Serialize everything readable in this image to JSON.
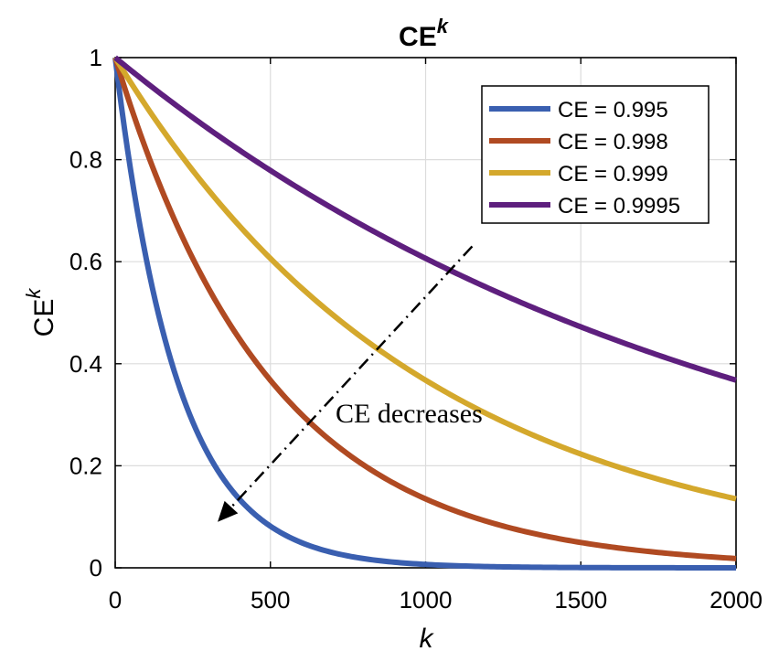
{
  "chart_data": {
    "type": "line",
    "title": "CE",
    "title_superscript": "k",
    "xlabel": "k",
    "ylabel": "CE",
    "ylabel_superscript": "k",
    "xlim": [
      0,
      2000
    ],
    "ylim": [
      0,
      1
    ],
    "xticks": [
      0,
      500,
      1000,
      1500,
      2000
    ],
    "xtick_labels": [
      "0",
      "500",
      "1000",
      "1500",
      "2000"
    ],
    "yticks": [
      0,
      0.2,
      0.4,
      0.6,
      0.8,
      1
    ],
    "ytick_labels": [
      "0",
      "0.2",
      "0.4",
      "0.6",
      "0.8",
      "1"
    ],
    "grid": true,
    "legend_position": "top-right",
    "function": "y = CE^k",
    "series": [
      {
        "name": "CE = 0.995",
        "ce": 0.995,
        "color": "#3a5fb0",
        "x": [
          0,
          250,
          500,
          750,
          1000,
          1500,
          2000
        ],
        "values": [
          1,
          0.286,
          0.082,
          0.023,
          0.007,
          0.001,
          0.0
        ]
      },
      {
        "name": "CE = 0.998",
        "ce": 0.998,
        "color": "#b04a22",
        "x": [
          0,
          250,
          500,
          750,
          1000,
          1500,
          2000
        ],
        "values": [
          1,
          0.606,
          0.367,
          0.223,
          0.135,
          0.05,
          0.018
        ]
      },
      {
        "name": "CE = 0.999",
        "ce": 0.999,
        "color": "#d4a82c",
        "x": [
          0,
          250,
          500,
          750,
          1000,
          1500,
          2000
        ],
        "values": [
          1,
          0.779,
          0.606,
          0.472,
          0.368,
          0.223,
          0.135
        ]
      },
      {
        "name": "CE = 0.9995",
        "ce": 0.9995,
        "color": "#5e1f7e",
        "x": [
          0,
          250,
          500,
          750,
          1000,
          1500,
          2000
        ],
        "values": [
          1,
          0.882,
          0.779,
          0.687,
          0.606,
          0.472,
          0.368
        ]
      }
    ],
    "annotations": [
      {
        "text": "CE decreases",
        "arrow_from": [
          1150,
          0.63
        ],
        "arrow_to": [
          330,
          0.09
        ],
        "style": "dash-dot"
      }
    ]
  }
}
